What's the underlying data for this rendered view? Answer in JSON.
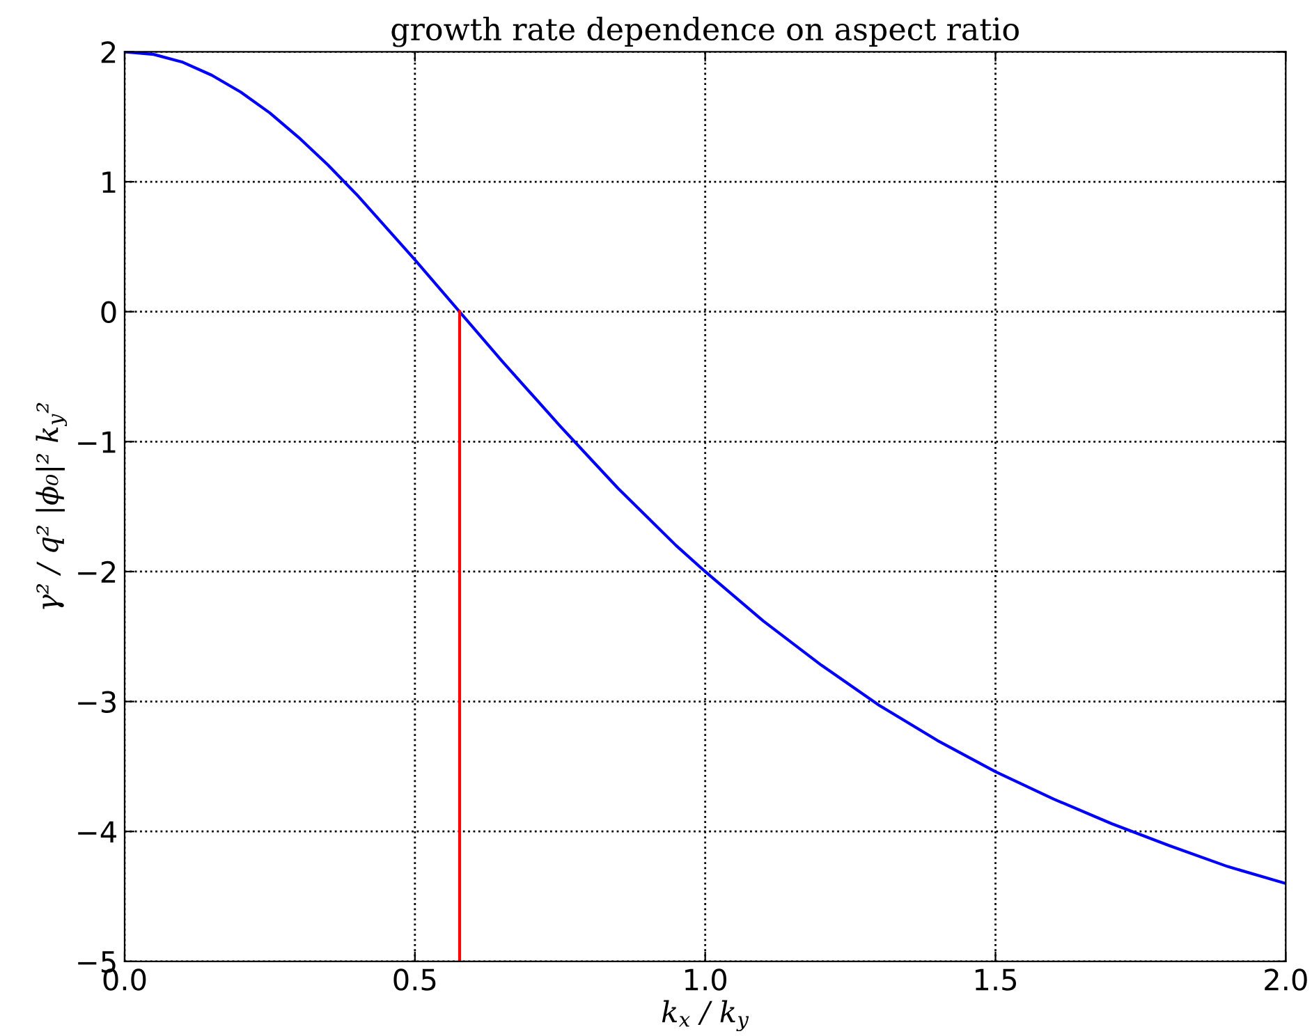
{
  "chart_data": {
    "type": "line",
    "title": "growth rate dependence on aspect ratio",
    "xlabel": "k$_{x}$ / k$_{y}$",
    "ylabel": "γ² / q² |ϕ₀|² k$_{y}$²",
    "series": [
      {
        "color": "#0000ff",
        "x": [
          0,
          0.05,
          0.1,
          0.15,
          0.2,
          0.25,
          0.3,
          0.35,
          0.4,
          0.45,
          0.5,
          0.55,
          0.6,
          0.65,
          0.7,
          0.75,
          0.8,
          0.85,
          0.9,
          0.95,
          1.0,
          1.1,
          1.2,
          1.3,
          1.4,
          1.5,
          1.6,
          1.7,
          1.8,
          1.9,
          2.0
        ],
        "values": [
          2,
          1.98,
          1.92,
          1.82,
          1.69,
          1.53,
          1.34,
          1.13,
          0.9,
          0.65,
          0.4,
          0.14,
          -0.12,
          -0.38,
          -0.63,
          -0.88,
          -1.12,
          -1.36,
          -1.58,
          -1.8,
          -2,
          -2.38,
          -2.72,
          -3.03,
          -3.3,
          -3.54,
          -3.75,
          -3.94,
          -4.11,
          -4.27,
          -4.4
        ]
      },
      {
        "color": "#ff0000",
        "x": [
          0.577,
          0.577
        ],
        "values": [
          -5,
          0
        ]
      }
    ],
    "xlim": [
      0,
      2
    ],
    "ylim": [
      -5,
      2
    ],
    "xticks": [
      {
        "value": 0,
        "label": "0.0"
      },
      {
        "value": 0.5,
        "label": "0.5"
      },
      {
        "value": 1,
        "label": "1.0"
      },
      {
        "value": 1.5,
        "label": "1.5"
      },
      {
        "value": 2,
        "label": "2.0"
      }
    ],
    "yticks": [
      {
        "value": -5,
        "label": "−5"
      },
      {
        "value": -4,
        "label": "−4"
      },
      {
        "value": -3,
        "label": "−3"
      },
      {
        "value": -2,
        "label": "−2"
      },
      {
        "value": -1,
        "label": "−1"
      },
      0,
      1,
      2
    ],
    "grid": true,
    "line_style": "solid"
  }
}
